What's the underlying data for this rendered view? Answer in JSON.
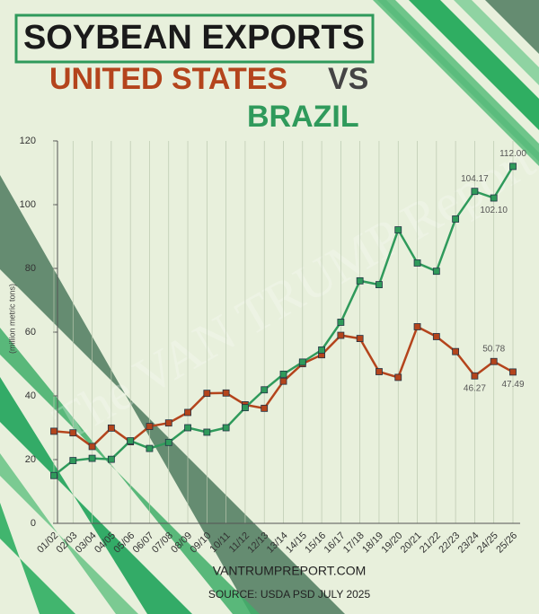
{
  "chart_data": {
    "type": "line",
    "title": "SOYBEAN EXPORTS",
    "subtitle_left": "UNITED STATES",
    "subtitle_vs": "VS",
    "subtitle_right": "BRAZIL",
    "y_label": "(million metric tons)",
    "watermark": "The VAN TRUMP Report",
    "website": "VANTRUMPREPORT.COM",
    "source": "SOURCE: USDA PSD JULY 2025",
    "categories": [
      "01/02",
      "02/03",
      "03/04",
      "04/05",
      "05/06",
      "06/07",
      "07/08",
      "08/09",
      "09/10",
      "10/11",
      "11/12",
      "12/13",
      "13/14",
      "14/15",
      "15/16",
      "16/17",
      "17/18",
      "18/19",
      "19/20",
      "20/21",
      "21/22",
      "22/23",
      "23/24",
      "24/25",
      "25/26"
    ],
    "series": [
      {
        "name": "UNITED STATES",
        "color": "#b4441c",
        "values": [
          28.9,
          28.4,
          24.1,
          29.9,
          25.6,
          30.4,
          31.5,
          34.8,
          40.8,
          40.9,
          37.2,
          36.1,
          44.6,
          50.1,
          52.9,
          59.0,
          58.0,
          47.6,
          45.8,
          61.7,
          58.6,
          53.9,
          46.27,
          50.78,
          47.49
        ],
        "value_labels": [
          null,
          null,
          null,
          null,
          null,
          null,
          null,
          null,
          null,
          null,
          null,
          null,
          null,
          null,
          null,
          null,
          null,
          null,
          null,
          null,
          null,
          null,
          "46.27",
          "50.78",
          "47.49"
        ]
      },
      {
        "name": "BRAZIL",
        "color": "#2f9a5b",
        "values": [
          15.0,
          19.7,
          20.4,
          20.1,
          25.9,
          23.5,
          25.4,
          30.0,
          28.6,
          30.0,
          36.3,
          41.9,
          46.8,
          50.6,
          54.4,
          63.1,
          76.1,
          74.9,
          92.1,
          81.7,
          79.1,
          95.5,
          104.17,
          102.1,
          112.0
        ],
        "value_labels": [
          null,
          null,
          null,
          null,
          null,
          null,
          null,
          null,
          null,
          null,
          null,
          null,
          null,
          null,
          null,
          null,
          null,
          null,
          null,
          null,
          null,
          null,
          "104.17",
          "102.10",
          "112.00"
        ]
      }
    ],
    "ylim": [
      0,
      120
    ],
    "yticks": [
      0,
      20,
      40,
      60,
      80,
      100,
      120
    ],
    "grid": true
  }
}
